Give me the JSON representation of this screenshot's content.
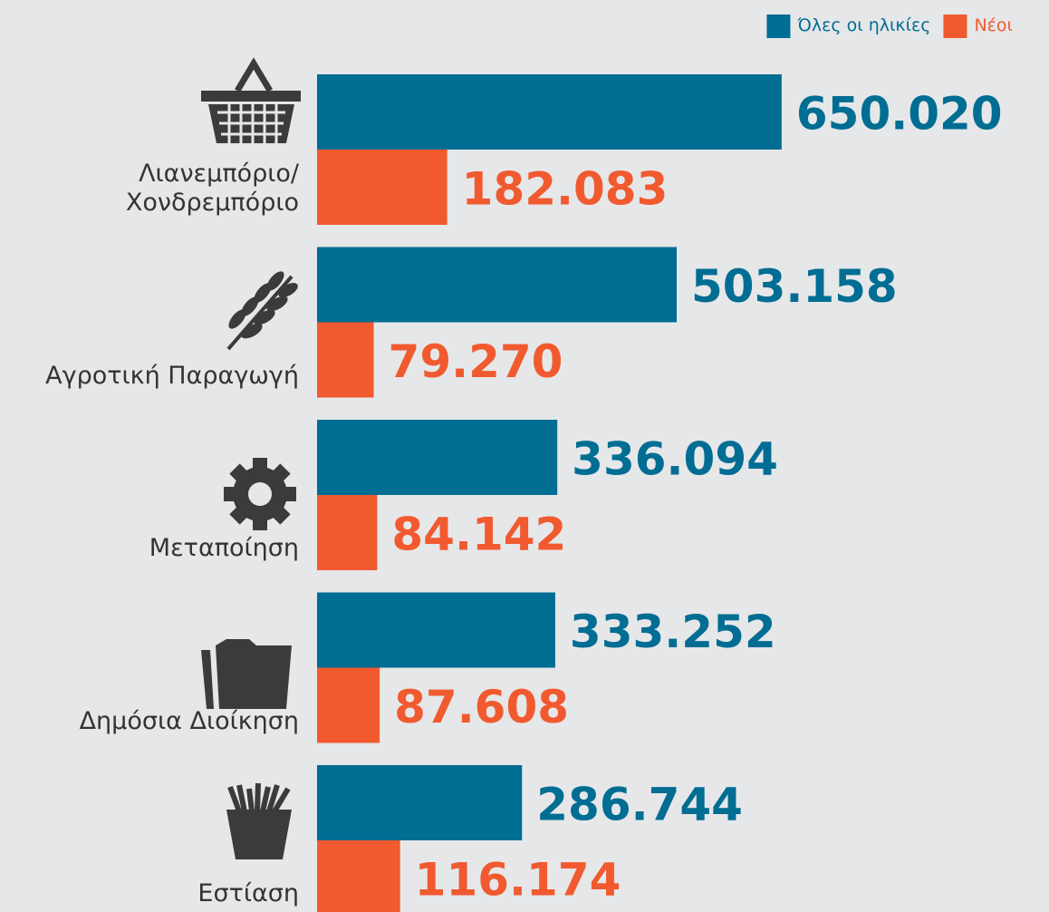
{
  "chart_data": {
    "type": "bar",
    "orientation": "horizontal",
    "categories": [
      "Λιανεμπόριο/\nΧονδρεμπόριο",
      "Αγροτική Παραγωγή",
      "Μεταποίηση",
      "Δημόσια Διοίκηση",
      "Εστίαση"
    ],
    "series": [
      {
        "name": "Όλες οι ηλικίες",
        "color": "#006d93",
        "values": [
          650020,
          503158,
          336094,
          333252,
          286744
        ],
        "value_labels": [
          "650.020",
          "503.158",
          "336.094",
          "333.252",
          "286.744"
        ]
      },
      {
        "name": "Νέοι",
        "color": "#f15a2f",
        "values": [
          182083,
          79270,
          84142,
          87608,
          116174
        ],
        "value_labels": [
          "182.083",
          "79.270",
          "84.142",
          "87.608",
          "116.174"
        ]
      }
    ],
    "legend": "top-right"
  }
}
